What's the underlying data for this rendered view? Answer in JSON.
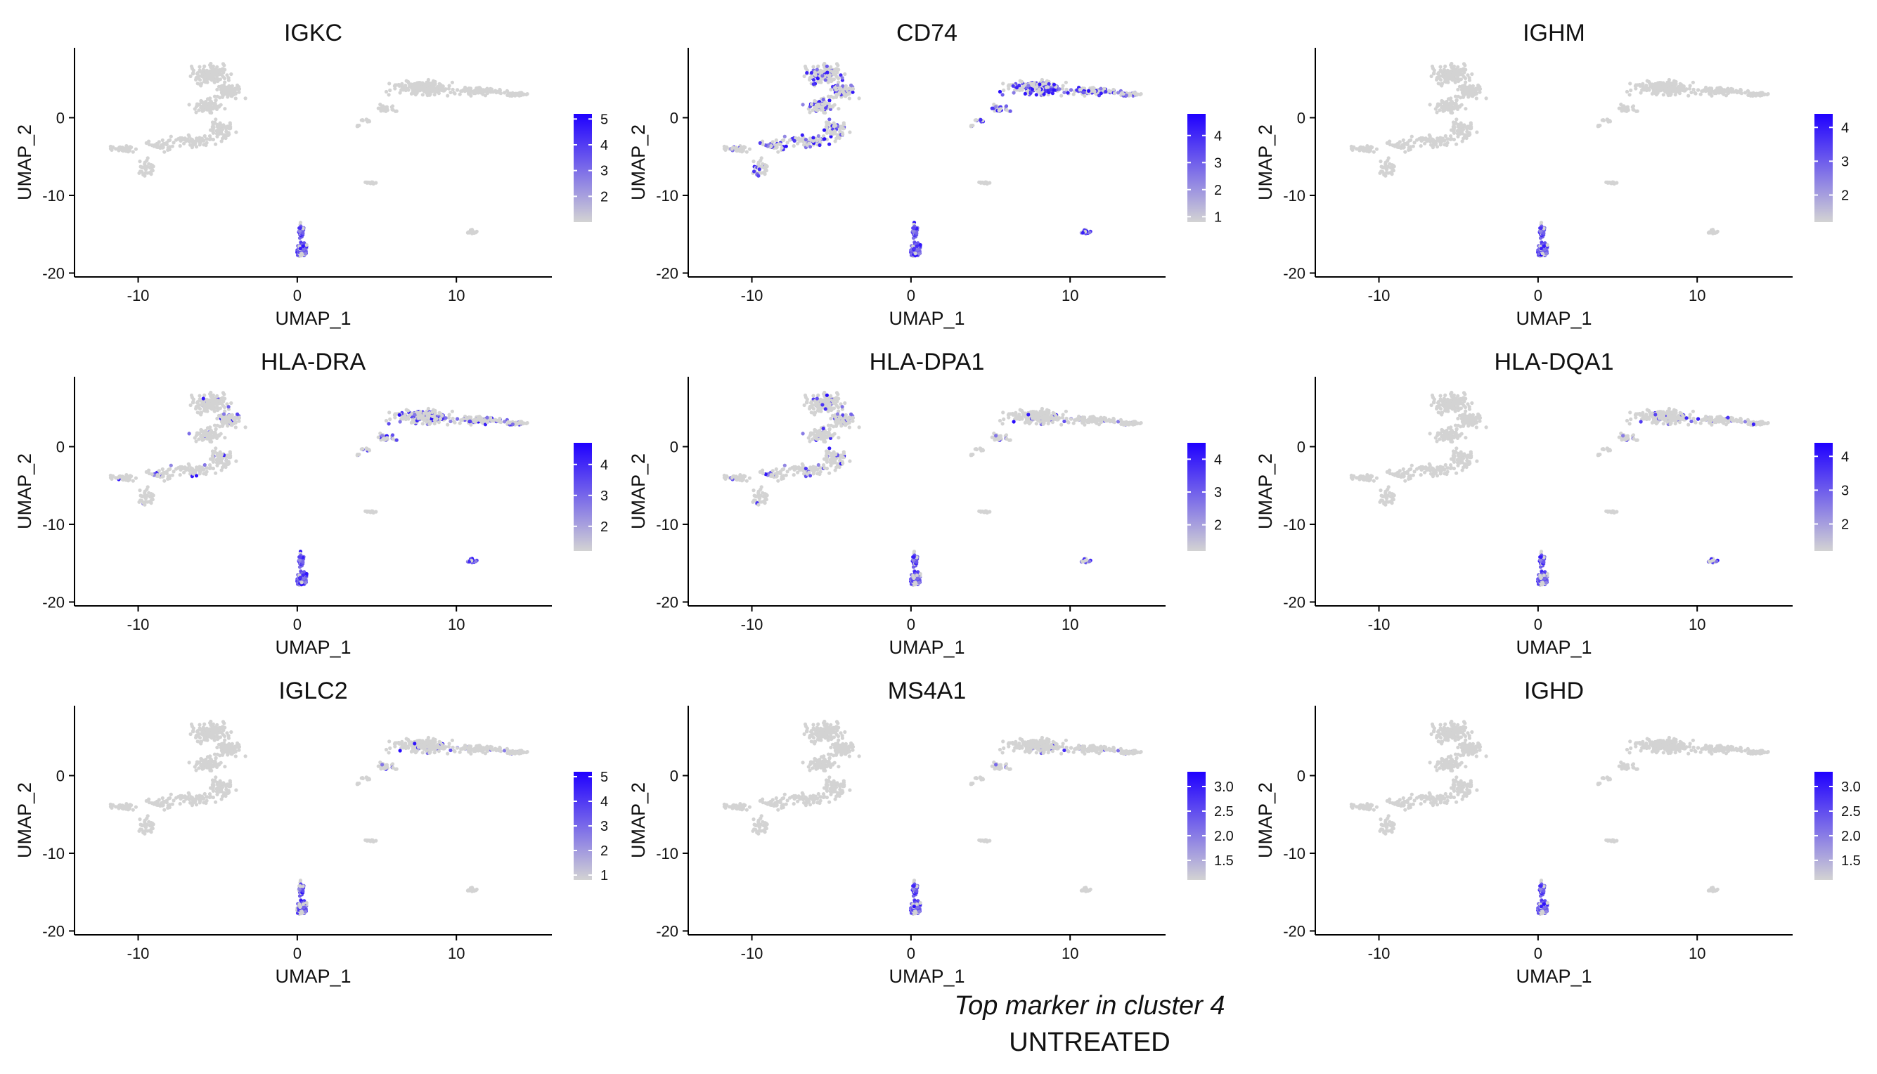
{
  "page_caption": {
    "title": "Top marker in cluster 4",
    "subtitle": "UNTREATED"
  },
  "colors": {
    "low": "#d3d3d3",
    "high": "#1f00ff",
    "axis": "#000000"
  },
  "chart_data": [
    {
      "type": "scatter",
      "title": "IGKC",
      "xlabel": "UMAP_1",
      "ylabel": "UMAP_2",
      "xlim": [
        -14,
        16
      ],
      "ylim": [
        -20.5,
        9
      ],
      "xticks": [
        -10,
        0,
        10
      ],
      "yticks": [
        0,
        -10,
        -20
      ],
      "legend": {
        "ticks": [
          5,
          4,
          3,
          2
        ],
        "range": [
          1,
          5.2
        ],
        "placement": "right"
      },
      "expression": {
        "b_cells": 0.72,
        "small_cluster": 0.0,
        "right_cluster": 0.0,
        "left_cluster": 0.0
      }
    },
    {
      "type": "scatter",
      "title": "CD74",
      "xlabel": "UMAP_1",
      "ylabel": "UMAP_2",
      "xlim": [
        -14,
        16
      ],
      "ylim": [
        -20.5,
        9
      ],
      "xticks": [
        -10,
        0,
        10
      ],
      "yticks": [
        0,
        -10,
        -20
      ],
      "legend": {
        "ticks": [
          4,
          3,
          2,
          1
        ],
        "range": [
          0.8,
          4.8
        ],
        "placement": "right"
      },
      "expression": {
        "b_cells": 0.9,
        "small_cluster": 0.6,
        "right_cluster": 0.45,
        "left_cluster": 0.25
      }
    },
    {
      "type": "scatter",
      "title": "IGHM",
      "xlabel": "UMAP_1",
      "ylabel": "UMAP_2",
      "xlim": [
        -14,
        16
      ],
      "ylim": [
        -20.5,
        9
      ],
      "xticks": [
        -10,
        0,
        10
      ],
      "yticks": [
        0,
        -10,
        -20
      ],
      "legend": {
        "ticks": [
          4,
          3,
          2
        ],
        "range": [
          1.2,
          4.4
        ],
        "placement": "right"
      },
      "expression": {
        "b_cells": 0.75,
        "small_cluster": 0.0,
        "right_cluster": 0.0,
        "left_cluster": 0.0
      }
    },
    {
      "type": "scatter",
      "title": "HLA-DRA",
      "xlabel": "UMAP_1",
      "ylabel": "UMAP_2",
      "xlim": [
        -14,
        16
      ],
      "ylim": [
        -20.5,
        9
      ],
      "xticks": [
        -10,
        0,
        10
      ],
      "yticks": [
        0,
        -10,
        -20
      ],
      "legend": {
        "ticks": [
          4,
          3,
          2
        ],
        "range": [
          1.2,
          4.7
        ],
        "placement": "right"
      },
      "expression": {
        "b_cells": 0.9,
        "small_cluster": 0.7,
        "right_cluster": 0.3,
        "left_cluster": 0.05
      }
    },
    {
      "type": "scatter",
      "title": "HLA-DPA1",
      "xlabel": "UMAP_1",
      "ylabel": "UMAP_2",
      "xlim": [
        -14,
        16
      ],
      "ylim": [
        -20.5,
        9
      ],
      "xticks": [
        -10,
        0,
        10
      ],
      "yticks": [
        0,
        -10,
        -20
      ],
      "legend": {
        "ticks": [
          4,
          3,
          2
        ],
        "range": [
          1.2,
          4.5
        ],
        "placement": "right"
      },
      "expression": {
        "b_cells": 0.6,
        "small_cluster": 0.5,
        "right_cluster": 0.05,
        "left_cluster": 0.1
      }
    },
    {
      "type": "scatter",
      "title": "HLA-DQA1",
      "xlabel": "UMAP_1",
      "ylabel": "UMAP_2",
      "xlim": [
        -14,
        16
      ],
      "ylim": [
        -20.5,
        9
      ],
      "xticks": [
        -10,
        0,
        10
      ],
      "yticks": [
        0,
        -10,
        -20
      ],
      "legend": {
        "ticks": [
          4,
          3,
          2
        ],
        "range": [
          1.2,
          4.4
        ],
        "placement": "right"
      },
      "expression": {
        "b_cells": 0.6,
        "small_cluster": 0.45,
        "right_cluster": 0.08,
        "left_cluster": 0.0
      }
    },
    {
      "type": "scatter",
      "title": "IGLC2",
      "xlabel": "UMAP_1",
      "ylabel": "UMAP_2",
      "xlim": [
        -14,
        16
      ],
      "ylim": [
        -20.5,
        9
      ],
      "xticks": [
        -10,
        0,
        10
      ],
      "yticks": [
        0,
        -10,
        -20
      ],
      "legend": {
        "ticks": [
          5,
          4,
          3,
          2,
          1
        ],
        "range": [
          0.8,
          5.2
        ],
        "placement": "right"
      },
      "expression": {
        "b_cells": 0.5,
        "small_cluster": 0.0,
        "right_cluster": 0.05,
        "left_cluster": 0.0
      }
    },
    {
      "type": "scatter",
      "title": "MS4A1",
      "xlabel": "UMAP_1",
      "ylabel": "UMAP_2",
      "xlim": [
        -14,
        16
      ],
      "ylim": [
        -20.5,
        9
      ],
      "xticks": [
        -10,
        0,
        10
      ],
      "yticks": [
        0,
        -10,
        -20
      ],
      "legend": {
        "ticks": [
          "3.0",
          "2.5",
          "2.0",
          "1.5"
        ],
        "range": [
          1.1,
          3.3
        ],
        "placement": "right"
      },
      "expression": {
        "b_cells": 0.65,
        "small_cluster": 0.0,
        "right_cluster": 0.03,
        "left_cluster": 0.0
      }
    },
    {
      "type": "scatter",
      "title": "IGHD",
      "xlabel": "UMAP_1",
      "ylabel": "UMAP_2",
      "xlim": [
        -14,
        16
      ],
      "ylim": [
        -20.5,
        9
      ],
      "xticks": [
        -10,
        0,
        10
      ],
      "yticks": [
        0,
        -10,
        -20
      ],
      "legend": {
        "ticks": [
          "3.0",
          "2.5",
          "2.0",
          "1.5"
        ],
        "range": [
          1.1,
          3.3
        ],
        "placement": "right"
      },
      "expression": {
        "b_cells": 0.7,
        "small_cluster": 0.0,
        "right_cluster": 0.0,
        "left_cluster": 0.0
      }
    }
  ]
}
